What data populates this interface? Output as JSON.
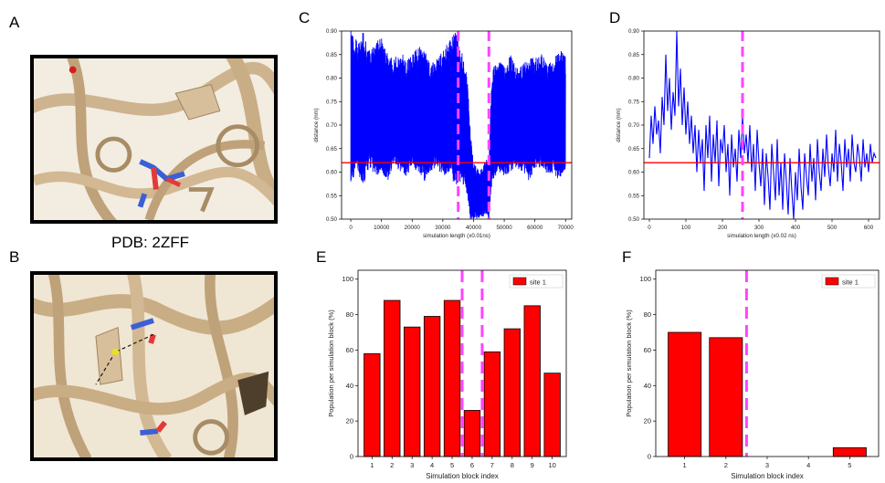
{
  "colors": {
    "line": "#0000ff",
    "threshold": "#ff0000",
    "bar": "#ff0000",
    "divider": "#ff44ff",
    "ribbon": "#cdb38b",
    "frame": "#000000"
  },
  "panels": {
    "A": {
      "letter": "A",
      "caption": "PDB: 2ZFF"
    },
    "B": {
      "letter": "B"
    },
    "C": {
      "letter": "C"
    },
    "D": {
      "letter": "D"
    },
    "E": {
      "letter": "E"
    },
    "F": {
      "letter": "F"
    }
  },
  "chart_data": [
    {
      "id": "C",
      "type": "line",
      "xlabel": "simulation length (x0.01ns)",
      "ylabel": "distance (nm)",
      "xlim": [
        -3000,
        72000
      ],
      "ylim": [
        0.5,
        0.9
      ],
      "xticks": [
        0,
        10000,
        20000,
        30000,
        40000,
        50000,
        60000,
        70000
      ],
      "yticks": [
        0.5,
        0.55,
        0.6,
        0.65,
        0.7,
        0.75,
        0.8,
        0.85,
        0.9
      ],
      "ytick_labels": [
        "0.50",
        "0.55",
        "0.60",
        "0.65",
        "0.70",
        "0.75",
        "0.80",
        "0.85",
        "0.90"
      ],
      "threshold": 0.62,
      "dividers": [
        35000,
        45000
      ],
      "series": [
        {
          "x": [
            0,
            2000,
            4000,
            6000,
            8000,
            10000,
            12000,
            14000,
            16000,
            18000,
            20000,
            22000,
            24000,
            26000,
            28000,
            30000,
            32000,
            34000,
            36000,
            38000,
            39000,
            40000,
            42000,
            44000,
            45000,
            46000,
            48000,
            50000,
            52000,
            54000,
            56000,
            58000,
            60000,
            62000,
            64000,
            66000,
            68000,
            70000
          ],
          "low": [
            0.58,
            0.6,
            0.57,
            0.61,
            0.59,
            0.6,
            0.58,
            0.62,
            0.6,
            0.59,
            0.61,
            0.6,
            0.58,
            0.6,
            0.61,
            0.59,
            0.6,
            0.57,
            0.58,
            0.55,
            0.5,
            0.5,
            0.5,
            0.51,
            0.5,
            0.58,
            0.6,
            0.59,
            0.6,
            0.61,
            0.6,
            0.58,
            0.6,
            0.61,
            0.59,
            0.6,
            0.58,
            0.6
          ],
          "high": [
            0.9,
            0.88,
            0.9,
            0.86,
            0.87,
            0.9,
            0.85,
            0.84,
            0.86,
            0.84,
            0.85,
            0.87,
            0.86,
            0.83,
            0.84,
            0.86,
            0.88,
            0.9,
            0.86,
            0.8,
            0.68,
            0.62,
            0.6,
            0.63,
            0.62,
            0.82,
            0.84,
            0.83,
            0.85,
            0.82,
            0.83,
            0.85,
            0.84,
            0.86,
            0.83,
            0.84,
            0.86,
            0.85
          ]
        }
      ]
    },
    {
      "id": "D",
      "type": "line",
      "xlabel": "simulation length (x0.02 ns)",
      "ylabel": "distance (nm)",
      "xlim": [
        -15,
        630
      ],
      "ylim": [
        0.5,
        0.9
      ],
      "xticks": [
        0,
        100,
        200,
        300,
        400,
        500,
        600
      ],
      "yticks": [
        0.5,
        0.55,
        0.6,
        0.65,
        0.7,
        0.75,
        0.8,
        0.85,
        0.9
      ],
      "ytick_labels": [
        "0.50",
        "0.55",
        "0.60",
        "0.65",
        "0.70",
        "0.75",
        "0.80",
        "0.85",
        "0.90"
      ],
      "threshold": 0.62,
      "dividers": [
        255
      ],
      "series": [
        {
          "x": [
            0,
            5,
            10,
            15,
            20,
            25,
            30,
            35,
            40,
            45,
            50,
            55,
            60,
            65,
            70,
            75,
            80,
            85,
            90,
            95,
            100,
            105,
            110,
            115,
            120,
            125,
            130,
            135,
            140,
            145,
            150,
            155,
            160,
            165,
            170,
            175,
            180,
            185,
            190,
            195,
            200,
            205,
            210,
            215,
            220,
            225,
            230,
            235,
            240,
            245,
            250,
            255,
            260,
            265,
            270,
            275,
            280,
            285,
            290,
            295,
            300,
            305,
            310,
            315,
            320,
            325,
            330,
            335,
            340,
            345,
            350,
            355,
            360,
            365,
            370,
            375,
            380,
            385,
            390,
            395,
            400,
            405,
            410,
            415,
            420,
            425,
            430,
            435,
            440,
            445,
            450,
            455,
            460,
            465,
            470,
            475,
            480,
            485,
            490,
            495,
            500,
            505,
            510,
            515,
            520,
            525,
            530,
            535,
            540,
            545,
            550,
            555,
            560,
            565,
            570,
            575,
            580,
            585,
            590,
            595,
            600,
            605,
            610,
            615,
            620
          ],
          "y": [
            0.63,
            0.72,
            0.66,
            0.74,
            0.68,
            0.71,
            0.64,
            0.76,
            0.7,
            0.85,
            0.73,
            0.8,
            0.69,
            0.77,
            0.72,
            0.9,
            0.74,
            0.82,
            0.7,
            0.78,
            0.68,
            0.75,
            0.66,
            0.72,
            0.64,
            0.7,
            0.6,
            0.69,
            0.62,
            0.67,
            0.56,
            0.7,
            0.63,
            0.72,
            0.58,
            0.68,
            0.62,
            0.71,
            0.57,
            0.67,
            0.64,
            0.7,
            0.6,
            0.66,
            0.55,
            0.68,
            0.61,
            0.65,
            0.58,
            0.69,
            0.63,
            0.72,
            0.64,
            0.68,
            0.62,
            0.7,
            0.6,
            0.66,
            0.56,
            0.69,
            0.62,
            0.57,
            0.65,
            0.53,
            0.64,
            0.59,
            0.52,
            0.66,
            0.6,
            0.54,
            0.67,
            0.55,
            0.62,
            0.52,
            0.64,
            0.58,
            0.51,
            0.63,
            0.56,
            0.5,
            0.6,
            0.54,
            0.65,
            0.57,
            0.52,
            0.64,
            0.59,
            0.55,
            0.66,
            0.58,
            0.63,
            0.54,
            0.67,
            0.6,
            0.56,
            0.65,
            0.59,
            0.68,
            0.61,
            0.57,
            0.64,
            0.6,
            0.69,
            0.58,
            0.66,
            0.62,
            0.56,
            0.67,
            0.61,
            0.65,
            0.58,
            0.68,
            0.62,
            0.6,
            0.66,
            0.63,
            0.58,
            0.67,
            0.61,
            0.64,
            0.6,
            0.66,
            0.62,
            0.64,
            0.63
          ]
        }
      ]
    },
    {
      "id": "E",
      "type": "bar",
      "categories": [
        "1",
        "2",
        "3",
        "4",
        "5",
        "6",
        "7",
        "8",
        "9",
        "10"
      ],
      "series": [
        {
          "name": "site 1",
          "values": [
            58,
            88,
            73,
            79,
            88,
            26,
            59,
            72,
            85,
            47
          ]
        }
      ],
      "xlabel": "Simulation block index",
      "ylabel": "Population per simulation block (%)",
      "ylim": [
        0,
        105
      ],
      "yticks": [
        0,
        20,
        40,
        60,
        80,
        100
      ],
      "dividers_after_index": [
        4.5,
        5.5
      ],
      "legend": "top-right"
    },
    {
      "id": "F",
      "type": "bar",
      "categories": [
        "1",
        "2",
        "3",
        "4",
        "5"
      ],
      "series": [
        {
          "name": "site 1",
          "values": [
            70,
            67,
            0,
            0,
            5
          ]
        }
      ],
      "xlabel": "Simulation block index",
      "ylabel": "Population per simulation block (%)",
      "ylim": [
        0,
        105
      ],
      "yticks": [
        0,
        20,
        40,
        60,
        80,
        100
      ],
      "dividers_after_index": [
        1.5
      ],
      "legend": "top-right"
    }
  ]
}
